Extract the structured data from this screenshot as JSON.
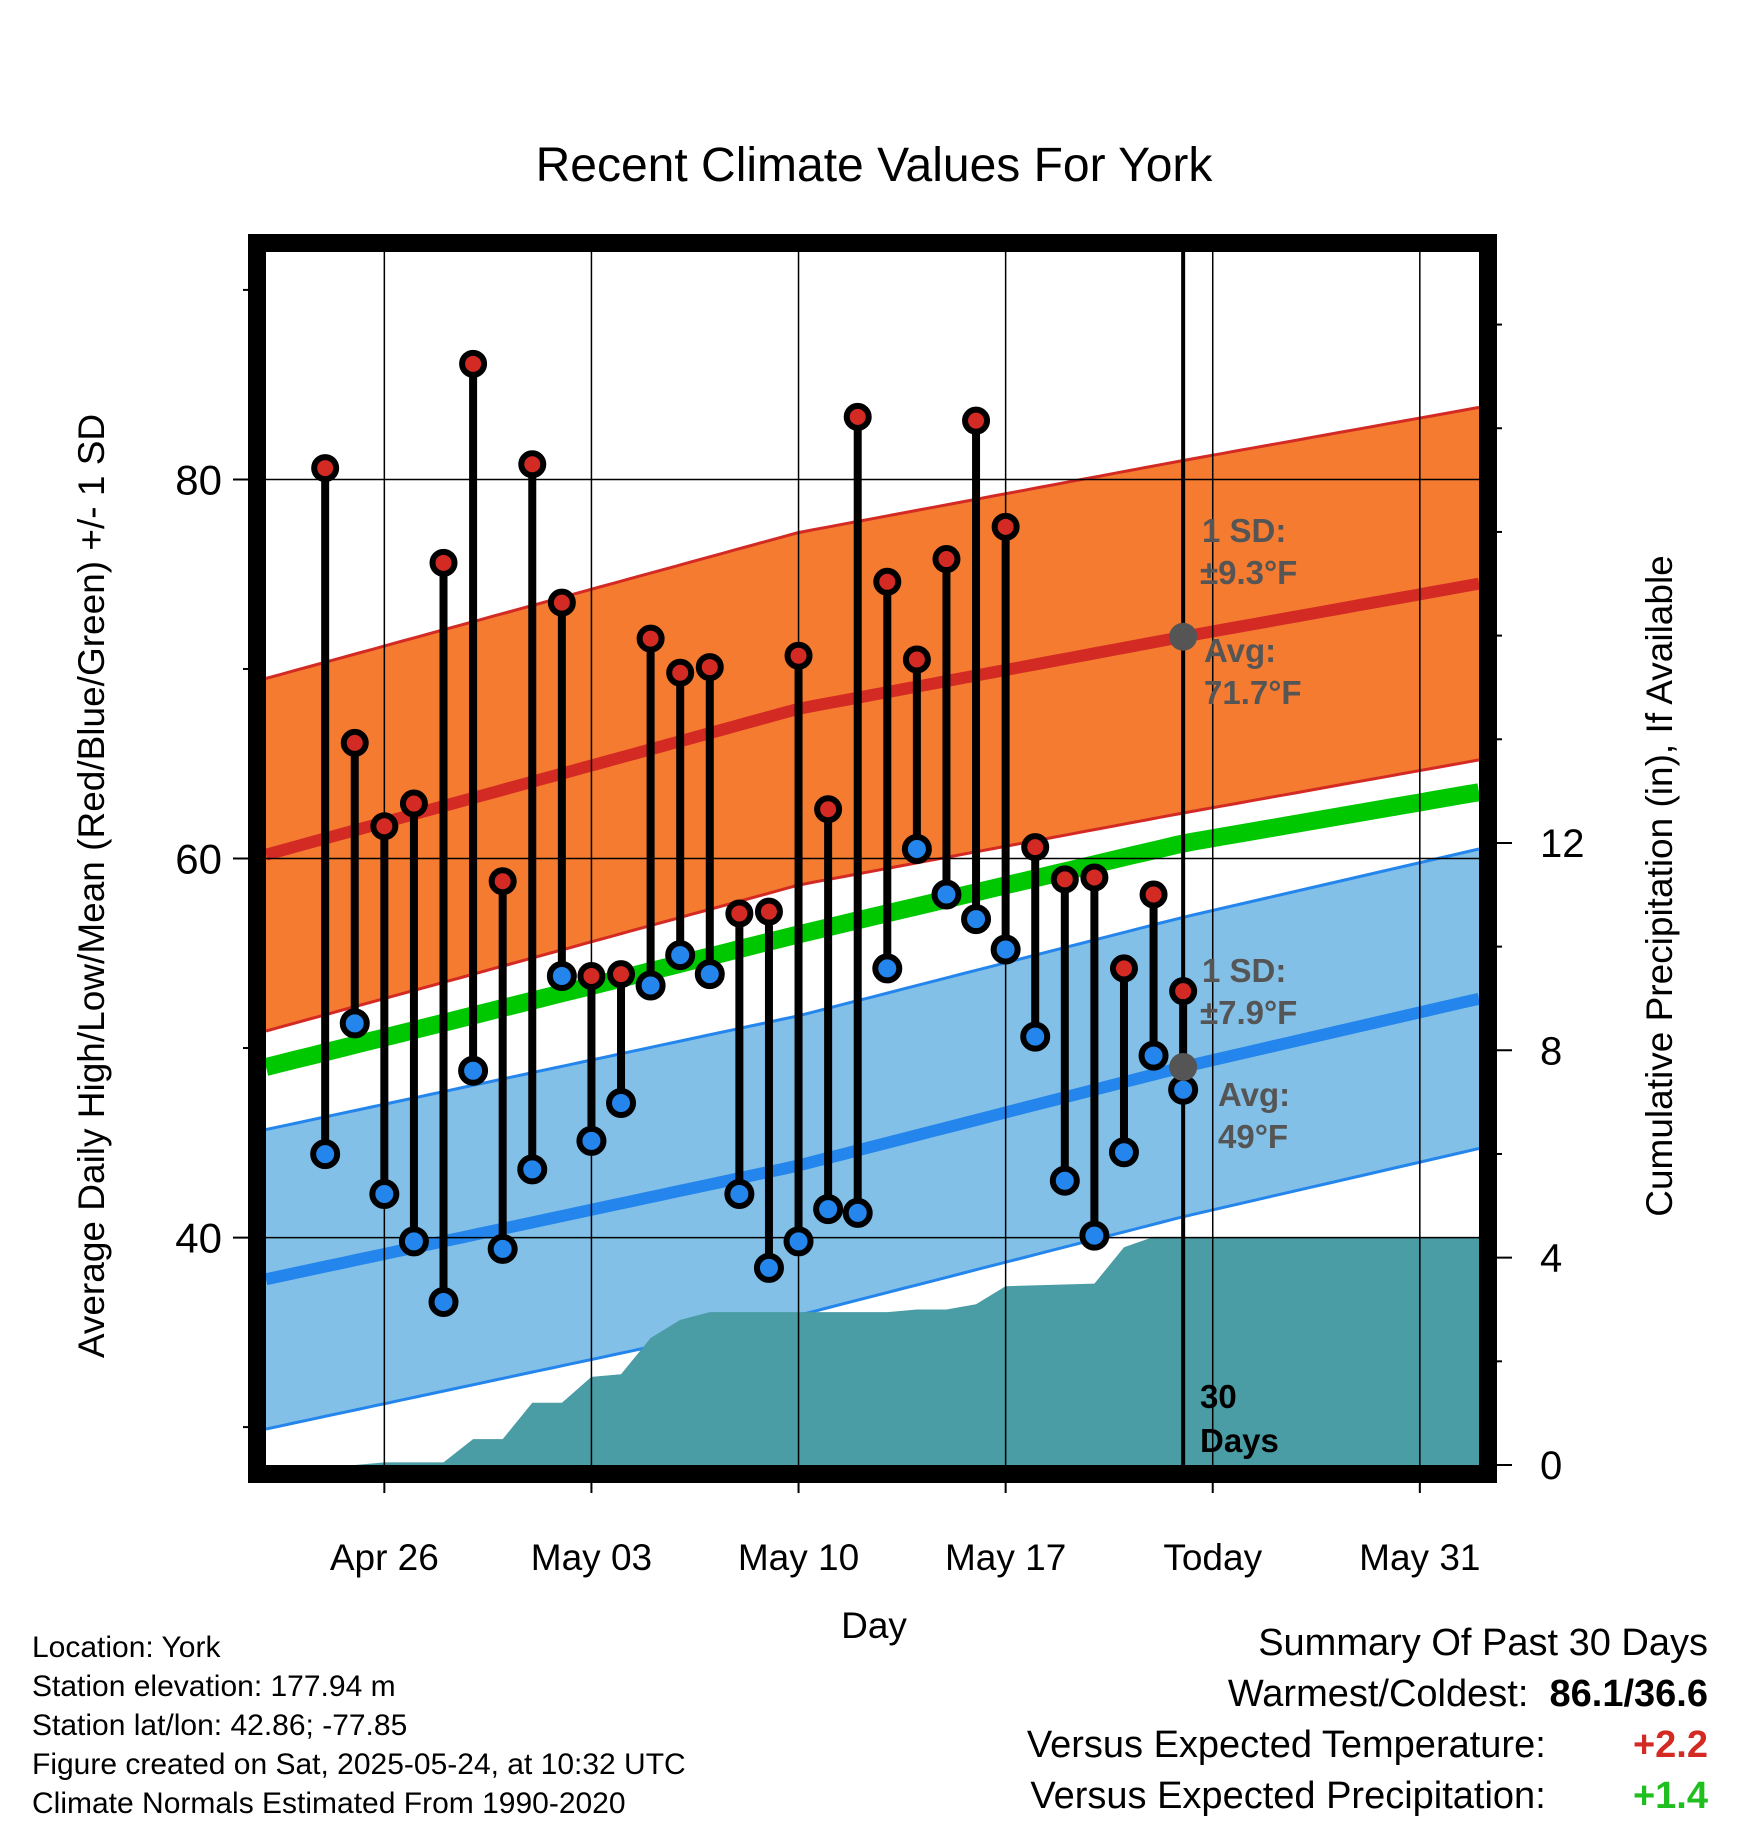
{
  "chart_data": {
    "type": "line",
    "title": "Recent Climate Values For York",
    "xlabel": "Day",
    "ylabel": "Average Daily High/Low/Mean (Red/Blue/Green) +/- 1 SD",
    "ylabel_right": "Cumulative Precipitation (in), If Available",
    "x_ticks": [
      "Apr 26",
      "May 03",
      "May 10",
      "May 17",
      "Today",
      "May 31"
    ],
    "y_ticks": [
      "40",
      "60",
      "80"
    ],
    "y2_ticks": [
      "0",
      "4",
      "8",
      "12"
    ],
    "ylim": [
      28,
      92
    ],
    "y2lim": [
      0,
      23.4
    ],
    "xlim": [
      "2025-04-22",
      "2025-06-02"
    ],
    "daily_high": [
      {
        "date": "2025-04-24",
        "value": 80.6
      },
      {
        "date": "2025-04-25",
        "value": 66.1
      },
      {
        "date": "2025-04-26",
        "value": 61.7
      },
      {
        "date": "2025-04-27",
        "value": 62.9
      },
      {
        "date": "2025-04-28",
        "value": 75.6
      },
      {
        "date": "2025-04-29",
        "value": 86.1
      },
      {
        "date": "2025-04-30",
        "value": 58.8
      },
      {
        "date": "2025-05-01",
        "value": 80.8
      },
      {
        "date": "2025-05-02",
        "value": 73.5
      },
      {
        "date": "2025-05-03",
        "value": 53.8
      },
      {
        "date": "2025-05-04",
        "value": 53.9
      },
      {
        "date": "2025-05-05",
        "value": 71.6
      },
      {
        "date": "2025-05-06",
        "value": 69.8
      },
      {
        "date": "2025-05-07",
        "value": 70.1
      },
      {
        "date": "2025-05-08",
        "value": 57.1
      },
      {
        "date": "2025-05-09",
        "value": 57.2
      },
      {
        "date": "2025-05-10",
        "value": 70.7
      },
      {
        "date": "2025-05-11",
        "value": 62.6
      },
      {
        "date": "2025-05-12",
        "value": 83.3
      },
      {
        "date": "2025-05-13",
        "value": 74.6
      },
      {
        "date": "2025-05-14",
        "value": 70.5
      },
      {
        "date": "2025-05-15",
        "value": 75.8
      },
      {
        "date": "2025-05-16",
        "value": 83.1
      },
      {
        "date": "2025-05-17",
        "value": 77.5
      },
      {
        "date": "2025-05-18",
        "value": 60.6
      },
      {
        "date": "2025-05-19",
        "value": 58.9
      },
      {
        "date": "2025-05-20",
        "value": 59.0
      },
      {
        "date": "2025-05-21",
        "value": 54.2
      },
      {
        "date": "2025-05-22",
        "value": 58.1
      },
      {
        "date": "2025-05-23",
        "value": 53.0
      }
    ],
    "daily_low": [
      {
        "date": "2025-04-24",
        "value": 44.4
      },
      {
        "date": "2025-04-25",
        "value": 51.3
      },
      {
        "date": "2025-04-26",
        "value": 42.3
      },
      {
        "date": "2025-04-27",
        "value": 39.8
      },
      {
        "date": "2025-04-28",
        "value": 36.6
      },
      {
        "date": "2025-04-29",
        "value": 48.8
      },
      {
        "date": "2025-04-30",
        "value": 39.4
      },
      {
        "date": "2025-05-01",
        "value": 43.6
      },
      {
        "date": "2025-05-02",
        "value": 53.8
      },
      {
        "date": "2025-05-03",
        "value": 45.1
      },
      {
        "date": "2025-05-04",
        "value": 47.1
      },
      {
        "date": "2025-05-05",
        "value": 53.3
      },
      {
        "date": "2025-05-06",
        "value": 54.9
      },
      {
        "date": "2025-05-07",
        "value": 53.9
      },
      {
        "date": "2025-05-08",
        "value": 42.3
      },
      {
        "date": "2025-05-09",
        "value": 38.4
      },
      {
        "date": "2025-05-10",
        "value": 39.8
      },
      {
        "date": "2025-05-11",
        "value": 41.5
      },
      {
        "date": "2025-05-12",
        "value": 41.3
      },
      {
        "date": "2025-05-13",
        "value": 54.2
      },
      {
        "date": "2025-05-14",
        "value": 60.5
      },
      {
        "date": "2025-05-15",
        "value": 58.1
      },
      {
        "date": "2025-05-16",
        "value": 56.8
      },
      {
        "date": "2025-05-17",
        "value": 55.2
      },
      {
        "date": "2025-05-18",
        "value": 50.6
      },
      {
        "date": "2025-05-19",
        "value": 43.0
      },
      {
        "date": "2025-05-20",
        "value": 40.1
      },
      {
        "date": "2025-05-21",
        "value": 44.5
      },
      {
        "date": "2025-05-22",
        "value": 49.6
      },
      {
        "date": "2025-05-23",
        "value": 47.8
      }
    ],
    "normal_high": {
      "dates": [
        "2025-04-22",
        "2025-05-10",
        "2025-05-23",
        "2025-06-02"
      ],
      "values": [
        60.2,
        67.9,
        71.7,
        74.5
      ]
    },
    "normal_high_sd": 9.3,
    "normal_low": {
      "dates": [
        "2025-04-22",
        "2025-05-10",
        "2025-05-23",
        "2025-06-02"
      ],
      "values": [
        37.8,
        43.8,
        49.0,
        52.6
      ]
    },
    "normal_low_sd": 7.9,
    "normal_mean": {
      "dates": [
        "2025-04-22",
        "2025-05-10",
        "2025-05-23",
        "2025-06-02"
      ],
      "values": [
        49.0,
        56.0,
        60.8,
        63.5
      ]
    },
    "cumulative_precip_in": [
      {
        "date": "2025-04-25",
        "value": 0.0
      },
      {
        "date": "2025-04-26",
        "value": 0.05
      },
      {
        "date": "2025-04-28",
        "value": 0.05
      },
      {
        "date": "2025-04-29",
        "value": 0.5
      },
      {
        "date": "2025-04-30",
        "value": 0.5
      },
      {
        "date": "2025-05-01",
        "value": 1.2
      },
      {
        "date": "2025-05-02",
        "value": 1.2
      },
      {
        "date": "2025-05-03",
        "value": 1.7
      },
      {
        "date": "2025-05-04",
        "value": 1.75
      },
      {
        "date": "2025-05-05",
        "value": 2.45
      },
      {
        "date": "2025-05-06",
        "value": 2.8
      },
      {
        "date": "2025-05-07",
        "value": 2.95
      },
      {
        "date": "2025-05-13",
        "value": 2.95
      },
      {
        "date": "2025-05-14",
        "value": 3.0
      },
      {
        "date": "2025-05-15",
        "value": 3.0
      },
      {
        "date": "2025-05-16",
        "value": 3.1
      },
      {
        "date": "2025-05-17",
        "value": 3.45
      },
      {
        "date": "2025-05-20",
        "value": 3.5
      },
      {
        "date": "2025-05-21",
        "value": 4.2
      },
      {
        "date": "2025-05-22",
        "value": 4.4
      },
      {
        "date": "2025-06-02",
        "value": 4.4
      }
    ],
    "today": "2025-05-23",
    "annotations": {
      "high_sd_label": "1 SD:",
      "high_sd_value": "±9.3°F",
      "high_avg_label": "Avg:",
      "high_avg_value": "71.7°F",
      "low_sd_label": "1 SD:",
      "low_sd_value": "±7.9°F",
      "low_avg_label": "Avg:",
      "low_avg_value": "49°F",
      "window_value": "30",
      "window_unit": "Days"
    },
    "colors": {
      "high_band": "#f47b30",
      "high_line": "#d42a24",
      "low_band": "#83c0e7",
      "low_line": "#2486ec",
      "mean_line": "#00c800",
      "precip": "#4a9ca5",
      "high_marker": "#d42a24",
      "low_marker": "#2486ec",
      "today_marker": "#555555"
    }
  },
  "footer": {
    "location": "Location: York",
    "elevation": "Station elevation: 177.94 m",
    "latlon": "Station lat/lon: 42.86; -77.85",
    "created": "Figure created on Sat, 2025-05-24, at 10:32 UTC",
    "normals": "Climate Normals Estimated From 1990-2020"
  },
  "summary": {
    "heading": "Summary Of Past 30 Days",
    "warmest_label": "Warmest/Coldest:",
    "warmest_value": "86.1/36.6",
    "temp_label": "Versus Expected Temperature:",
    "temp_value": "+2.2",
    "temp_color": "#d42a24",
    "precip_label": "Versus Expected Precipitation:",
    "precip_value": "+1.4",
    "precip_color": "#1fbf1f"
  }
}
